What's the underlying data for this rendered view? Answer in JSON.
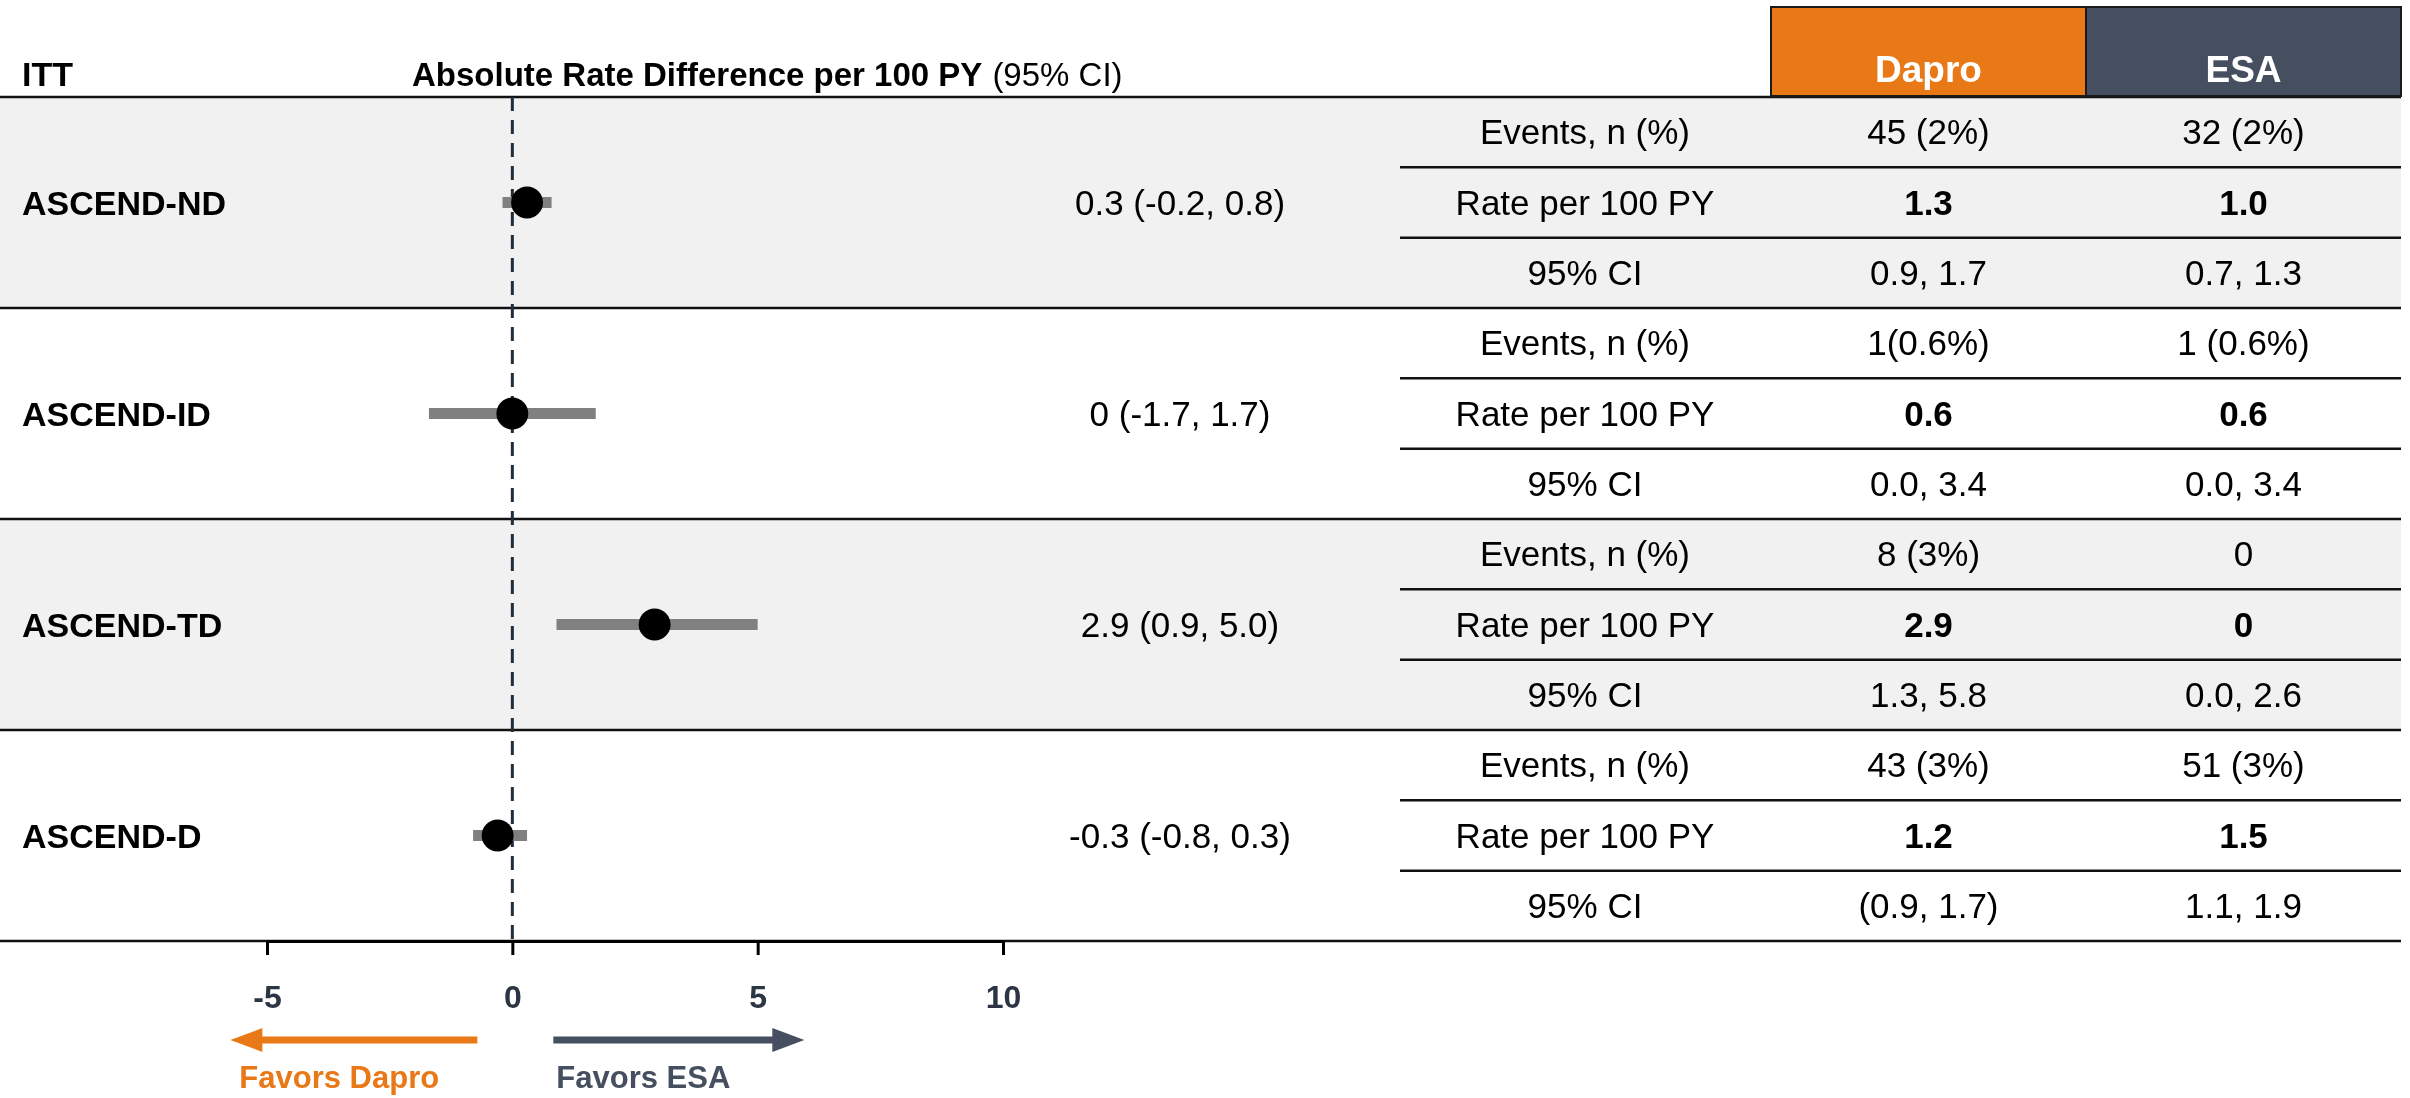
{
  "chart_data": [
    {
      "type": "scatter",
      "orientation": "horizontal",
      "ylabel": "ITT",
      "title": "Absolute Rate Difference per 100 PY",
      "subtitle": "(95% CI)",
      "categories": [
        "ASCEND-ND",
        "ASCEND-ID",
        "ASCEND-TD",
        "ASCEND-D"
      ],
      "series": [
        {
          "color": "#000000",
          "values": [
            0.3,
            0,
            2.9,
            -0.3
          ],
          "errors": [
            [
              -0.2,
              0.8
            ],
            [
              -1.7,
              1.7
            ],
            [
              0.9,
              5.0
            ],
            [
              -0.8,
              0.3
            ]
          ],
          "value_labels": [
            "0.3 (-0.2, 0.8)",
            "0 (-1.7, 1.7)",
            "2.9 (0.9, 5.0)",
            "-0.3 (-0.8, 0.3)"
          ]
        }
      ],
      "marker": "circle",
      "xlim": [
        -5,
        10
      ],
      "xticks": [
        -5,
        0,
        5,
        10
      ],
      "ref_lines": [
        {
          "axis": "x",
          "value": 0,
          "line_style": "dashed",
          "color": "#1f2d3d"
        }
      ],
      "annotations": [
        "Favors Dapro",
        "Favors ESA"
      ]
    },
    {
      "type": "other",
      "categories": [
        "Dapro",
        "ESA"
      ],
      "colors": [
        "#e97817",
        "#454f5f"
      ],
      "y_categories": [
        "Events, n (%)",
        "Rate per 100 PY",
        "95% CI",
        "Events, n (%)",
        "Rate per 100 PY",
        "95% CI",
        "Events, n (%)",
        "Rate per 100 PY",
        "95% CI",
        "Events, n (%)",
        "Rate per 100 PY",
        "95% CI"
      ],
      "cell_labels": [
        [
          "45 (2%)",
          "32 (2%)"
        ],
        [
          "1.3",
          "1.0"
        ],
        [
          "0.9, 1.7",
          "0.7, 1.3"
        ],
        [
          "1(0.6%)",
          "1 (0.6%)"
        ],
        [
          "0.6",
          "0.6"
        ],
        [
          "0.0, 3.4",
          "0.0, 3.4"
        ],
        [
          "8 (3%)",
          "0"
        ],
        [
          "2.9",
          "0"
        ],
        [
          "1.3, 5.8",
          "0.0, 2.6"
        ],
        [
          "43 (3%)",
          "51 (3%)"
        ],
        [
          "1.2",
          "1.5"
        ],
        [
          "(0.9, 1.7)",
          "1.1, 1.9"
        ]
      ]
    }
  ]
}
